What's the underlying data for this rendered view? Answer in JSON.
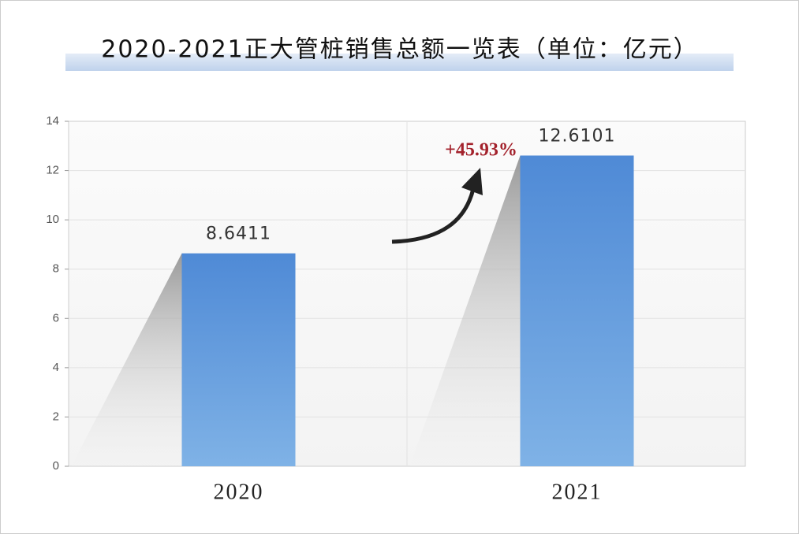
{
  "chart_data": {
    "type": "bar",
    "title": "2020-2021正大管桩销售总额一览表（单位：亿元）",
    "categories": [
      "2020",
      "2021"
    ],
    "values": [
      8.6411,
      12.6101
    ],
    "color": "#5b95d9",
    "ylim": [
      0,
      14
    ],
    "yticks": [
      0,
      2,
      4,
      6,
      8,
      10,
      12,
      14
    ],
    "grid": true,
    "annotation": "+45.93%"
  }
}
